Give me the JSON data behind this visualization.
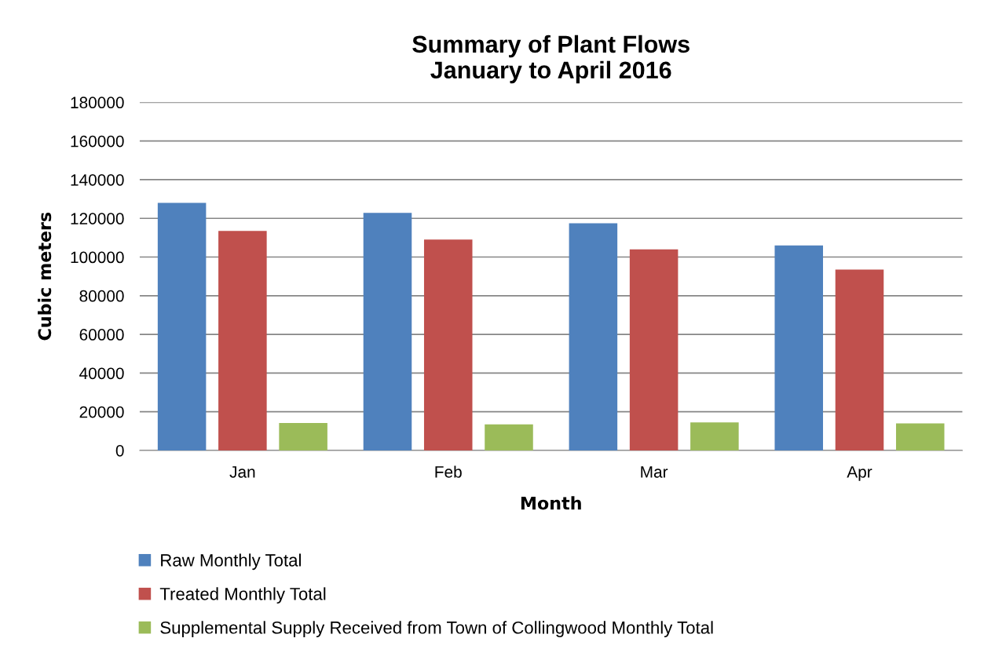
{
  "chart_data": {
    "type": "bar",
    "title": "Summary of Plant Flows\nJanuary to April 2016",
    "xlabel": "Month",
    "ylabel": "Cubic meters",
    "categories": [
      "Jan",
      "Feb",
      "Mar",
      "Apr"
    ],
    "series": [
      {
        "name": "Raw Monthly Total",
        "color": "#4f81bd",
        "values": [
          128000,
          122800,
          117500,
          106000
        ]
      },
      {
        "name": "Treated Monthly Total",
        "color": "#c0504d",
        "values": [
          113500,
          109000,
          104000,
          93500
        ]
      },
      {
        "name": "Supplemental Supply Received from Town of Collingwood Monthly Total",
        "color": "#9bbb59",
        "values": [
          14200,
          13500,
          14500,
          14000
        ]
      }
    ],
    "ylim": [
      0,
      180000
    ],
    "yticks": [
      0,
      20000,
      40000,
      60000,
      80000,
      100000,
      120000,
      140000,
      160000,
      180000
    ],
    "grid": "y",
    "legend": "bottom"
  }
}
